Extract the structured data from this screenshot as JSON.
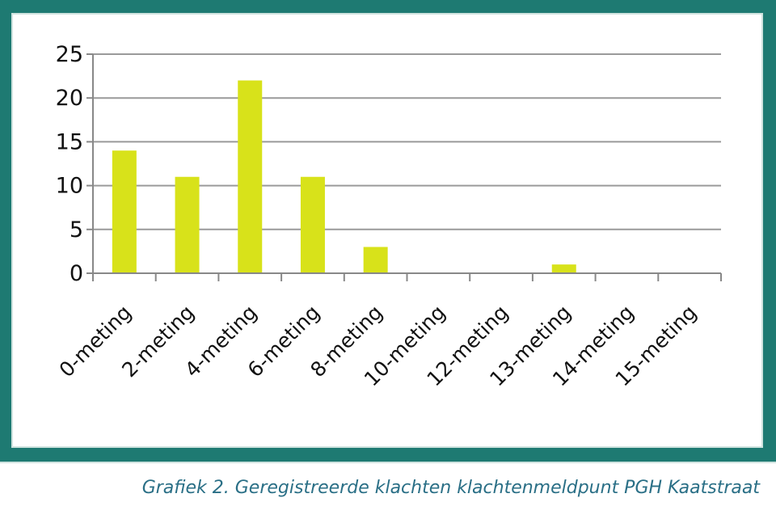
{
  "chart_data": {
    "type": "bar",
    "categories": [
      "0-meting",
      "2-meting",
      "4-meting",
      "6-meting",
      "8-meting",
      "10-meting",
      "12-meting",
      "13-meting",
      "14-meting",
      "15-meting"
    ],
    "values": [
      14,
      11,
      22,
      11,
      3,
      0,
      0,
      1,
      0,
      0
    ],
    "ylim": [
      0,
      25
    ],
    "yticks": [
      0,
      5,
      10,
      15,
      20,
      25
    ],
    "grid": true,
    "bar_color": "#d8e21a",
    "caption": "Grafiek 2. Geregistreerde klachten klachtenmeldpunt PGH Kaatstraat"
  },
  "colors": {
    "border": "#1e7a72",
    "caption_text": "#2a6f86",
    "bar": "#d8e21a"
  }
}
